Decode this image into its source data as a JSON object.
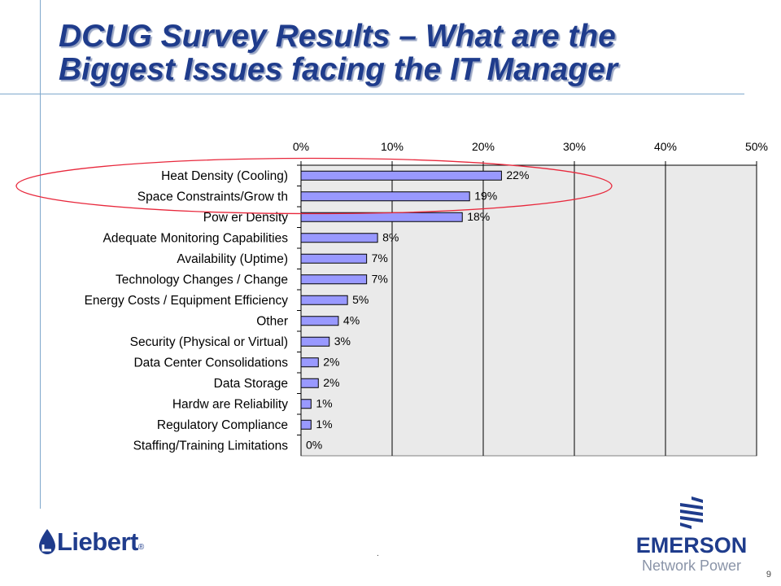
{
  "slide": {
    "title_line1": "DCUG Survey Results – What are the",
    "title_line2": "Biggest Issues facing the IT Manager",
    "page_number": "9",
    "footnote_mark": "."
  },
  "logos": {
    "liebert": {
      "text": "Liebert",
      "mark": "®"
    },
    "emerson": {
      "text": "EMERSON",
      "mark": "™",
      "subtitle": "Network Power"
    }
  },
  "colors": {
    "title": "#1f3c8c",
    "bar_fill": "#9999ff",
    "bar_stroke": "#000000",
    "plot_background": "#eaeaea",
    "highlight_ellipse": "#e8283c",
    "accent_rules": "#7fa8cc"
  },
  "chart_data": {
    "type": "bar",
    "orientation": "horizontal",
    "categories": [
      "Heat Density (Cooling)",
      "Space Constraints/Grow th",
      "Pow er Density",
      "Adequate Monitoring Capabilities",
      "Availability (Uptime)",
      "Technology Changes / Change",
      "Energy Costs / Equipment Efficiency",
      "Other",
      "Security (Physical or Virtual)",
      "Data Center Consolidations",
      "Data Storage",
      "Hardw are Reliability",
      "Regulatory Compliance",
      "Staffing/Training Limitations"
    ],
    "values": [
      22,
      19,
      18,
      8,
      7,
      7,
      5,
      4,
      3,
      2,
      2,
      1,
      1,
      0
    ],
    "bar_values": [
      22,
      18.5,
      17.7,
      8.4,
      7.2,
      7.2,
      5.1,
      4.1,
      3.1,
      1.9,
      1.9,
      1.1,
      1.1,
      0
    ],
    "data_labels": [
      "22%",
      "19%",
      "18%",
      "8%",
      "7%",
      "7%",
      "5%",
      "4%",
      "3%",
      "2%",
      "2%",
      "1%",
      "1%",
      "0%"
    ],
    "x_ticks": [
      0,
      10,
      20,
      30,
      40,
      50
    ],
    "x_tick_labels": [
      "0%",
      "10%",
      "20%",
      "30%",
      "40%",
      "50%"
    ],
    "xlim": [
      0,
      50
    ],
    "axis_position": "top",
    "grid": true,
    "highlight": {
      "shape": "ellipse",
      "categories": [
        "Heat Density (Cooling)",
        "Space Constraints/Grow th"
      ]
    },
    "title": "",
    "xlabel": "",
    "ylabel": ""
  }
}
